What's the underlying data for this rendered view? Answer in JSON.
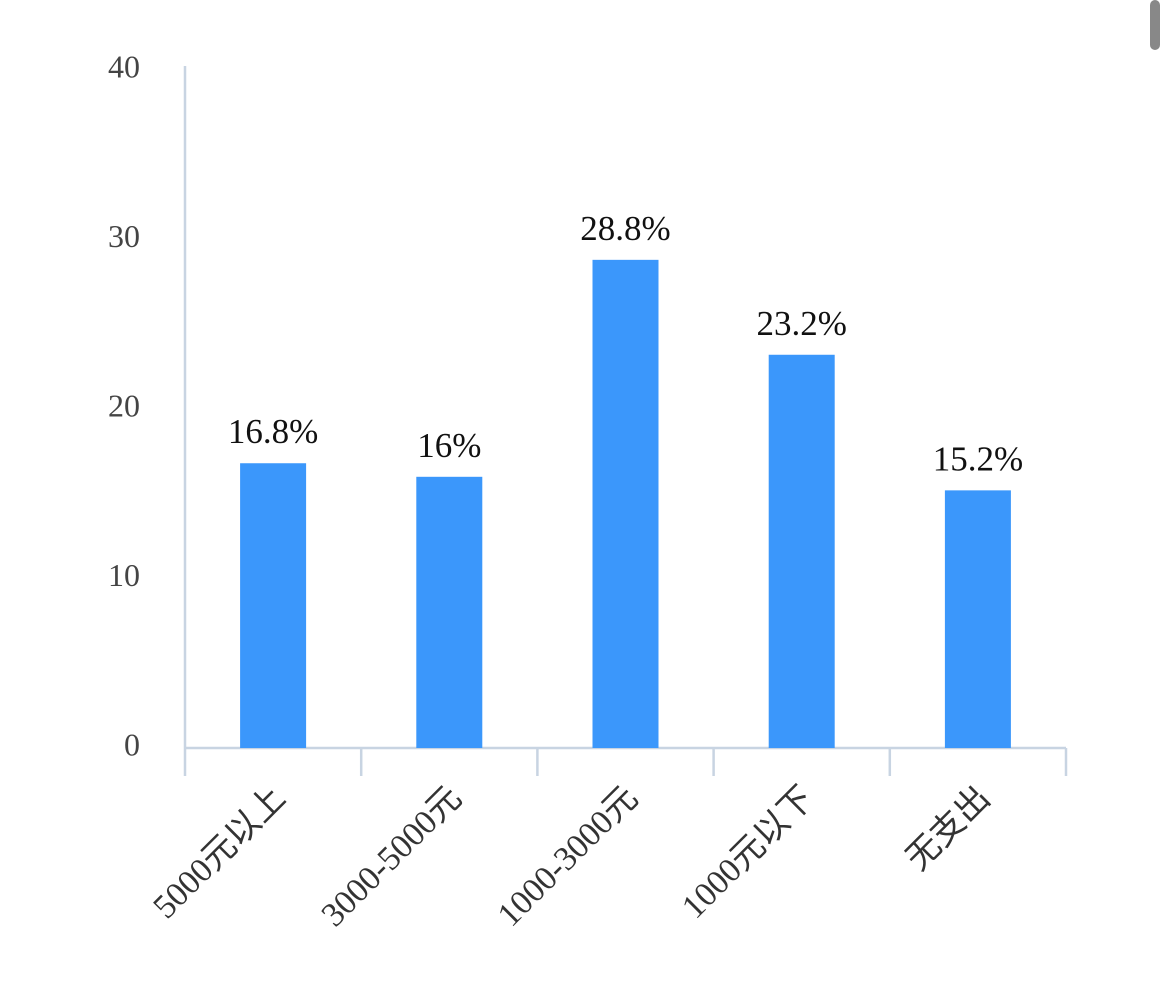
{
  "chart_data": {
    "type": "bar",
    "categories": [
      "5000元以上",
      "3000-5000元",
      "1000-3000元",
      "1000元以下",
      "无支出"
    ],
    "values": [
      16.8,
      16,
      28.8,
      23.2,
      15.2
    ],
    "value_labels": [
      "16.8%",
      "16%",
      "28.8%",
      "23.2%",
      "15.2%"
    ],
    "color": "#3b97fb",
    "ylim": [
      0,
      40
    ],
    "yticks": [
      0,
      10,
      20,
      30,
      40
    ],
    "grid": false
  }
}
